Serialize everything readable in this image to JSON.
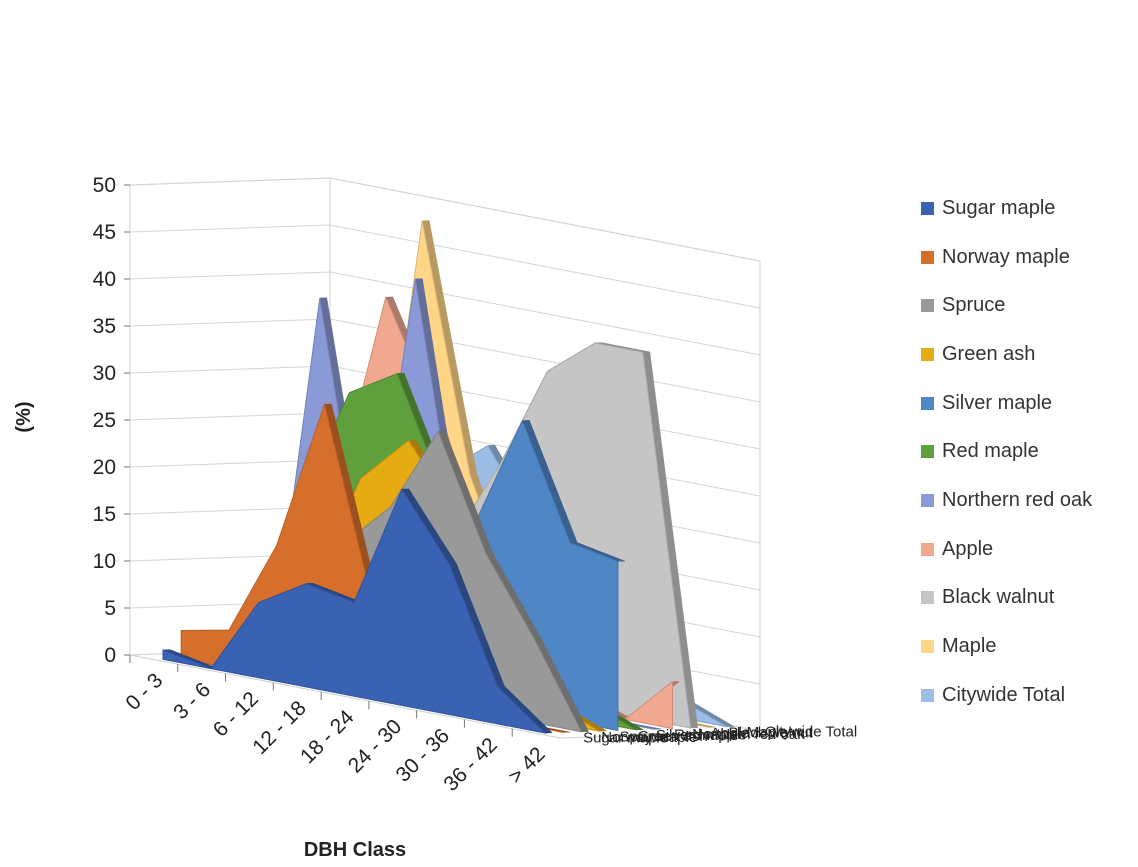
{
  "chart_data": {
    "type": "area",
    "title": "",
    "xlabel": "DBH Class",
    "ylabel": "(%)",
    "ylim": [
      0,
      50
    ],
    "yticks": [
      "0",
      "5",
      "10",
      "15",
      "20",
      "25",
      "30",
      "35",
      "40",
      "45",
      "50"
    ],
    "categories": [
      "0 - 3",
      "3 - 6",
      "6 - 12",
      "12 - 18",
      "18 - 24",
      "24 - 30",
      "30 - 36",
      "36 - 42",
      "> 42"
    ],
    "grid": true,
    "legend_position": "right",
    "series": [
      {
        "name": "Sugar maple",
        "color": "#3a62b2",
        "values": [
          1,
          0,
          8,
          11,
          10,
          23,
          16,
          4,
          0
        ]
      },
      {
        "name": "Norway maple",
        "color": "#d76f2c",
        "values": [
          3,
          4,
          14,
          30,
          10,
          5,
          2,
          0,
          0
        ]
      },
      {
        "name": "Spruce",
        "color": "#999999",
        "values": [
          1,
          2,
          10,
          15,
          20,
          29,
          17,
          9,
          0
        ]
      },
      {
        "name": "Green ash",
        "color": "#e5ab13",
        "values": [
          0,
          2,
          10,
          22,
          27,
          20,
          9,
          2,
          0
        ]
      },
      {
        "name": "Silver maple",
        "color": "#4f86c6",
        "values": [
          0,
          2,
          9,
          14,
          10,
          19,
          31,
          19,
          18
        ]
      },
      {
        "name": "Red maple",
        "color": "#5fa03c",
        "values": [
          0,
          18,
          30,
          33,
          21,
          11,
          5,
          2,
          0
        ]
      },
      {
        "name": "Northern red oak",
        "color": "#8a9ad6",
        "values": [
          0,
          39,
          9,
          43,
          12,
          5,
          2,
          0,
          0
        ]
      },
      {
        "name": "Apple",
        "color": "#f0a890",
        "values": [
          0,
          19,
          40,
          29,
          12,
          5,
          2,
          0,
          5
        ]
      },
      {
        "name": "Black walnut",
        "color": "#c5c5c5",
        "values": [
          0,
          5,
          11,
          15,
          24,
          35,
          39,
          39,
          0
        ]
      },
      {
        "name": "Maple",
        "color": "#ffd587",
        "values": [
          0,
          10,
          48,
          22,
          9,
          4,
          1,
          0,
          0
        ]
      },
      {
        "name": "Citywide Total",
        "color": "#9bbde6",
        "values": [
          0,
          10,
          21,
          25,
          17,
          11,
          6,
          2,
          0
        ]
      }
    ]
  }
}
